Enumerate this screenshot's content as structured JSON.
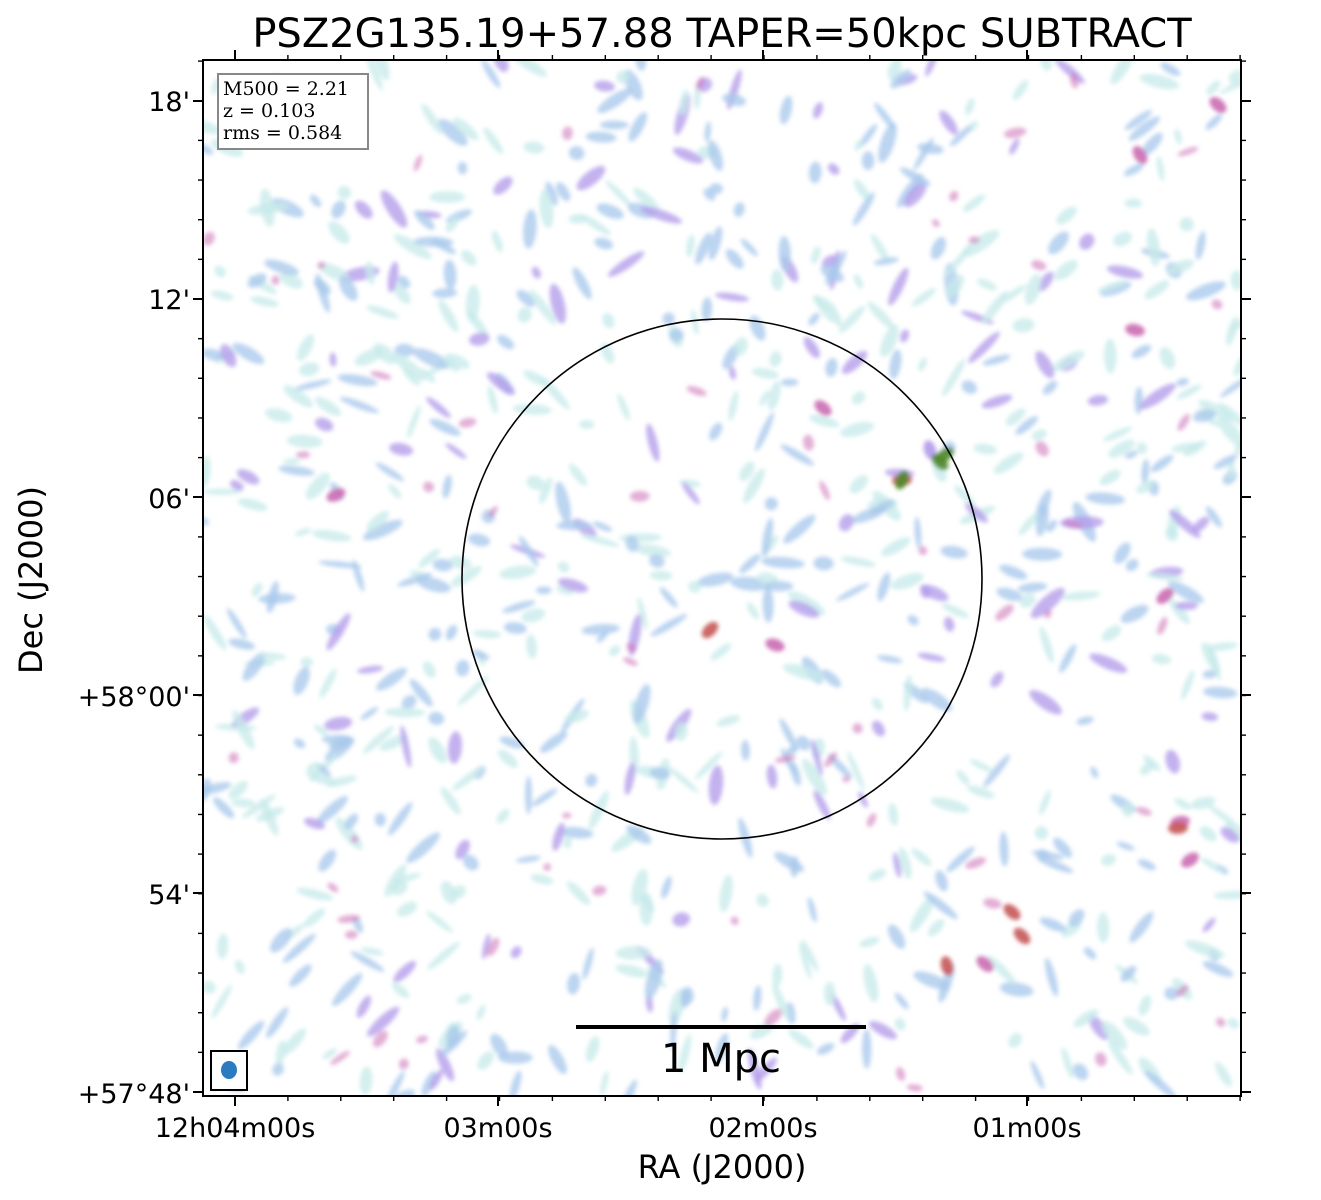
{
  "chart_data": {
    "type": "heatmap",
    "title": "PSZ2G135.19+57.88 TAPER=50kpc SUBTRACT",
    "xlabel": "RA (J2000)",
    "ylabel": "Dec (J2000)",
    "x_ticks": [
      "12h04m00s",
      "03m00s",
      "02m00s",
      "01m00s"
    ],
    "y_ticks": [
      "18'",
      "12'",
      "06'",
      "+58°00'",
      "54'",
      "+57°48'"
    ],
    "info_box": [
      "M500 = 2.21",
      "z = 0.103",
      "rms = 0.584"
    ],
    "scale_bar_label": "1 Mpc",
    "grid": false,
    "colormap": [
      "#c8eaea",
      "#a9c9ec",
      "#b39cea",
      "#cc6fb4",
      "#c75a5a",
      "#4f8a2d"
    ],
    "circle_color": "#000000",
    "beam_color": "#2a7bbf"
  }
}
